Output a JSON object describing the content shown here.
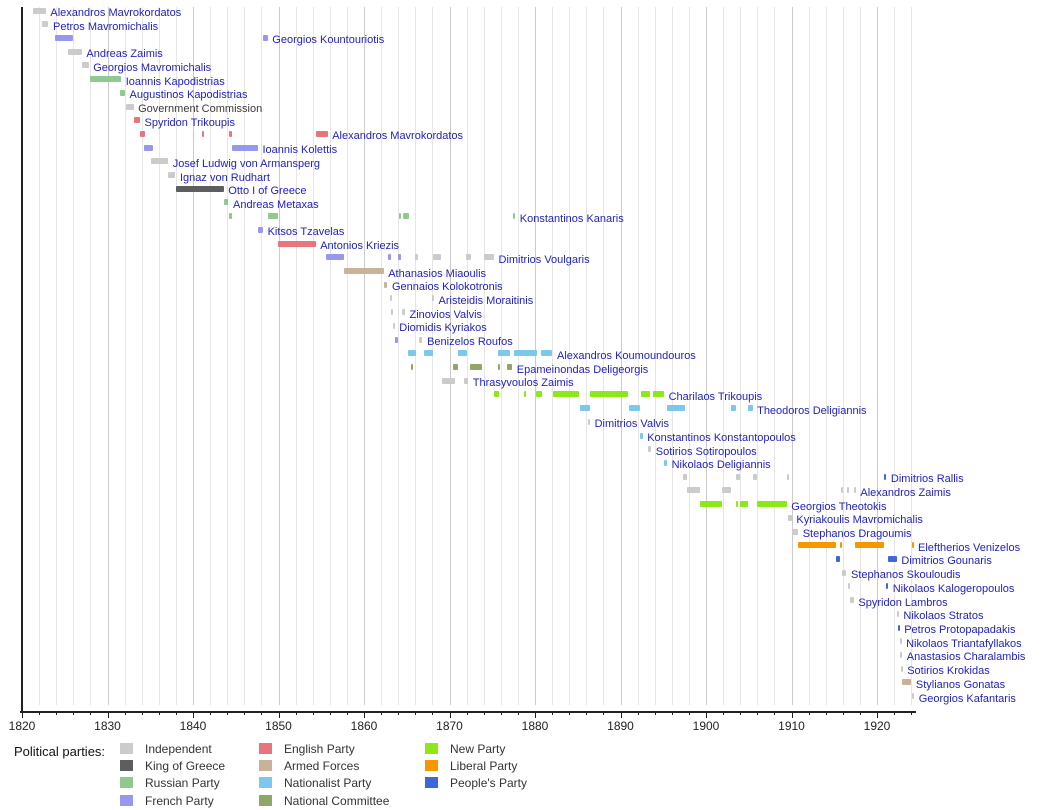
{
  "chart_data": {
    "type": "timeline",
    "description": "Gantt-style timeline of Greek heads of government 1821-1924, colored by political party",
    "x_axis": {
      "range": [
        1820,
        1924.7
      ],
      "major_ticks": [
        1820,
        1830,
        1840,
        1850,
        1860,
        1870,
        1880,
        1890,
        1900,
        1910,
        1920
      ],
      "minor_tick_step_years": 2,
      "gridline_step_years": 2,
      "grid": "on"
    },
    "colors": {
      "link_text": "#2222bb",
      "plain_text": "#3a3a3a",
      "axis": "#222222",
      "grid_minor": "#e6e6e6",
      "grid_major": "#cbcbcb",
      "background": "#ffffff"
    },
    "parties": {
      "ind": {
        "label": "Independent",
        "color": "#cbcbcb"
      },
      "king": {
        "label": "King of Greece",
        "color": "#5e5e5e"
      },
      "rus": {
        "label": "Russian Party",
        "color": "#8fc98f"
      },
      "fr": {
        "label": "French Party",
        "color": "#9797ee"
      },
      "eng": {
        "label": "English Party",
        "color": "#e8747c"
      },
      "arm": {
        "label": "Armed Forces",
        "color": "#c8b299"
      },
      "nat": {
        "label": "Nationalist Party",
        "color": "#7cc8eb"
      },
      "nc": {
        "label": "National Committee",
        "color": "#8fa765"
      },
      "new": {
        "label": "New Party",
        "color": "#8ce816"
      },
      "lib": {
        "label": "Liberal Party",
        "color": "#f59800"
      },
      "peo": {
        "label": "People's Party",
        "color": "#3e68d8"
      }
    },
    "legend": {
      "title": "Political parties:",
      "columns": [
        [
          "ind",
          "king",
          "rus",
          "fr"
        ],
        [
          "eng",
          "arm",
          "nat",
          "nc"
        ],
        [
          "new",
          "lib",
          "peo"
        ]
      ]
    },
    "people": [
      {
        "name": "Alexandros Mavrokordatos",
        "link": true,
        "segments": [
          [
            1821.3,
            1822.8,
            "ind"
          ]
        ]
      },
      {
        "name": "Petros Mavromichalis",
        "link": true,
        "segments": [
          [
            1822.3,
            1823.1,
            "ind"
          ]
        ]
      },
      {
        "name": "Georgios Kountouriotis",
        "link": true,
        "segments": [
          [
            1823.8,
            1826.0,
            "fr"
          ],
          [
            1848.2,
            1848.75,
            "fr"
          ]
        ]
      },
      {
        "name": "Andreas Zaimis",
        "link": true,
        "segments": [
          [
            1825.4,
            1827.0,
            "ind"
          ]
        ]
      },
      {
        "name": "Georgios Mavromichalis",
        "link": true,
        "segments": [
          [
            1827.0,
            1827.8,
            "ind"
          ]
        ]
      },
      {
        "name": "Ioannis Kapodistrias",
        "link": true,
        "segments": [
          [
            1827.9,
            1831.6,
            "rus"
          ]
        ]
      },
      {
        "name": "Augustinos Kapodistrias",
        "link": true,
        "segments": [
          [
            1831.4,
            1832.05,
            "rus"
          ]
        ]
      },
      {
        "name": "Government Commission",
        "link": false,
        "segments": [
          [
            1832.1,
            1833.05,
            "ind"
          ]
        ]
      },
      {
        "name": "Spyridon Trikoupis",
        "link": true,
        "segments": [
          [
            1833.1,
            1833.8,
            "eng"
          ]
        ]
      },
      {
        "name": "Alexandros Mavrokordatos",
        "link": true,
        "segments": [
          [
            1833.8,
            1834.4,
            "eng"
          ],
          [
            1841.1,
            1841.35,
            "eng"
          ],
          [
            1844.2,
            1844.55,
            "eng"
          ],
          [
            1854.4,
            1855.75,
            "eng"
          ]
        ]
      },
      {
        "name": "Ioannis Kolettis",
        "link": true,
        "segments": [
          [
            1834.3,
            1835.3,
            "fr"
          ],
          [
            1844.55,
            1847.6,
            "fr"
          ]
        ]
      },
      {
        "name": "Josef Ludwig von Armansperg",
        "link": true,
        "segments": [
          [
            1835.1,
            1837.1,
            "ind"
          ]
        ]
      },
      {
        "name": "Ignaz von Rudhart",
        "link": true,
        "segments": [
          [
            1837.1,
            1837.95,
            "ind"
          ]
        ]
      },
      {
        "name": "Otto I of Greece",
        "link": true,
        "segments": [
          [
            1837.95,
            1843.6,
            "king"
          ]
        ]
      },
      {
        "name": "Andreas Metaxas",
        "link": true,
        "segments": [
          [
            1843.6,
            1844.15,
            "rus"
          ]
        ]
      },
      {
        "name": "Konstantinos Kanaris",
        "link": true,
        "segments": [
          [
            1844.15,
            1844.55,
            "rus"
          ],
          [
            1848.75,
            1849.9,
            "rus"
          ],
          [
            1864.1,
            1864.3,
            "rus"
          ],
          [
            1864.5,
            1865.25,
            "rus"
          ],
          [
            1877.4,
            1877.7,
            "rus"
          ]
        ]
      },
      {
        "name": "Kitsos Tzavelas",
        "link": true,
        "segments": [
          [
            1847.6,
            1848.2,
            "fr"
          ]
        ]
      },
      {
        "name": "Antonios Kriezis",
        "link": true,
        "segments": [
          [
            1849.9,
            1854.35,
            "eng"
          ]
        ]
      },
      {
        "name": "Dimitrios Voulgaris",
        "link": true,
        "segments": [
          [
            1855.5,
            1857.7,
            "fr"
          ],
          [
            1862.75,
            1863.1,
            "fr"
          ],
          [
            1863.95,
            1864.3,
            "fr"
          ],
          [
            1865.95,
            1866.35,
            "ind"
          ],
          [
            1868.1,
            1869.05,
            "ind"
          ],
          [
            1871.95,
            1872.55,
            "ind"
          ],
          [
            1874.0,
            1875.2,
            "ind"
          ]
        ]
      },
      {
        "name": "Athanasios Miaoulis",
        "link": true,
        "segments": [
          [
            1857.7,
            1862.3,
            "arm"
          ]
        ]
      },
      {
        "name": "Gennaios Kolokotronis",
        "link": true,
        "segments": [
          [
            1862.3,
            1862.75,
            "arm"
          ]
        ]
      },
      {
        "name": "Aristeidis Moraitinis",
        "link": true,
        "segments": [
          [
            1863.05,
            1863.2,
            "ind"
          ],
          [
            1867.95,
            1868.1,
            "ind"
          ]
        ]
      },
      {
        "name": "Zinovios Valvis",
        "link": true,
        "segments": [
          [
            1863.2,
            1863.35,
            "ind"
          ],
          [
            1864.45,
            1864.8,
            "ind"
          ]
        ]
      },
      {
        "name": "Diomidis Kyriakos",
        "link": true,
        "segments": [
          [
            1863.35,
            1863.6,
            "ind"
          ]
        ]
      },
      {
        "name": "Benizelos Roufos",
        "link": true,
        "segments": [
          [
            1863.6,
            1864.0,
            "fr"
          ],
          [
            1866.4,
            1866.85,
            "ind"
          ]
        ]
      },
      {
        "name": "Alexandros Koumoundouros",
        "link": true,
        "segments": [
          [
            1865.15,
            1866.1,
            "nat"
          ],
          [
            1867.0,
            1868.1,
            "nat"
          ],
          [
            1870.95,
            1872.0,
            "nat"
          ],
          [
            1875.7,
            1877.1,
            "nat"
          ],
          [
            1877.55,
            1880.2,
            "nat"
          ],
          [
            1880.75,
            1882.05,
            "nat"
          ]
        ]
      },
      {
        "name": "Epameinondas Deligeorgis",
        "link": true,
        "segments": [
          [
            1865.45,
            1865.75,
            "nc"
          ],
          [
            1870.45,
            1870.95,
            "nc"
          ],
          [
            1872.45,
            1873.85,
            "nc"
          ],
          [
            1875.65,
            1875.8,
            "nc"
          ],
          [
            1876.75,
            1877.35,
            "nc"
          ]
        ]
      },
      {
        "name": "Thrasyvoulos Zaimis",
        "link": true,
        "segments": [
          [
            1869.1,
            1870.6,
            "ind"
          ],
          [
            1871.7,
            1872.2,
            "ind"
          ]
        ]
      },
      {
        "name": "Charilaos Trikoupis",
        "link": true,
        "segments": [
          [
            1875.25,
            1875.85,
            "new"
          ],
          [
            1878.75,
            1878.95,
            "new"
          ],
          [
            1880.15,
            1880.85,
            "new"
          ],
          [
            1882.15,
            1885.2,
            "new"
          ],
          [
            1886.4,
            1890.85,
            "new"
          ],
          [
            1892.4,
            1893.4,
            "new"
          ],
          [
            1893.85,
            1895.1,
            "new"
          ]
        ]
      },
      {
        "name": "Theodoros Deligiannis",
        "link": true,
        "segments": [
          [
            1885.3,
            1886.4,
            "nat"
          ],
          [
            1890.95,
            1892.3,
            "nat"
          ],
          [
            1895.45,
            1897.5,
            "nat"
          ],
          [
            1902.95,
            1903.5,
            "nat"
          ],
          [
            1904.95,
            1905.45,
            "nat"
          ]
        ]
      },
      {
        "name": "Dimitrios Valvis",
        "link": true,
        "segments": [
          [
            1886.2,
            1886.45,
            "ind"
          ]
        ]
      },
      {
        "name": "Konstantinos Konstantopoulos",
        "link": true,
        "segments": [
          [
            1892.3,
            1892.6,
            "nat"
          ]
        ]
      },
      {
        "name": "Sotirios Sotiropoulos",
        "link": true,
        "segments": [
          [
            1893.2,
            1893.6,
            "ind"
          ]
        ]
      },
      {
        "name": "Nikolaos Deligiannis",
        "link": true,
        "segments": [
          [
            1895.1,
            1895.45,
            "nat"
          ]
        ]
      },
      {
        "name": "Dimitrios Rallis",
        "link": true,
        "segments": [
          [
            1897.3,
            1897.75,
            "ind"
          ],
          [
            1903.55,
            1903.95,
            "ind"
          ],
          [
            1905.45,
            1905.95,
            "ind"
          ],
          [
            1909.45,
            1909.6,
            "ind"
          ],
          [
            1920.85,
            1921.1,
            "peo"
          ]
        ]
      },
      {
        "name": "Alexandros Zaimis",
        "link": true,
        "segments": [
          [
            1897.75,
            1899.3,
            "ind"
          ],
          [
            1901.85,
            1902.9,
            "ind"
          ],
          [
            1915.75,
            1915.87,
            "ind"
          ],
          [
            1916.45,
            1916.65,
            "ind"
          ],
          [
            1917.3,
            1917.45,
            "ind"
          ]
        ]
      },
      {
        "name": "Georgios Theotokis",
        "link": true,
        "segments": [
          [
            1899.3,
            1901.85,
            "new"
          ],
          [
            1903.45,
            1903.57,
            "new"
          ],
          [
            1903.95,
            1904.95,
            "new"
          ],
          [
            1905.95,
            1909.45,
            "new"
          ]
        ]
      },
      {
        "name": "Kyriakoulis Mavromichalis",
        "link": true,
        "segments": [
          [
            1909.6,
            1910.05,
            "ind"
          ]
        ]
      },
      {
        "name": "Stephanos Dragoumis",
        "link": true,
        "segments": [
          [
            1910.05,
            1910.78,
            "ind"
          ]
        ]
      },
      {
        "name": "Eleftherios Venizelos",
        "link": true,
        "segments": [
          [
            1910.8,
            1915.18,
            "lib"
          ],
          [
            1915.63,
            1915.78,
            "lib"
          ],
          [
            1917.47,
            1920.85,
            "lib"
          ],
          [
            1924.03,
            1924.17,
            "lib"
          ]
        ]
      },
      {
        "name": "Dimitrios Gounaris",
        "link": true,
        "segments": [
          [
            1915.2,
            1915.62,
            "peo"
          ],
          [
            1921.25,
            1922.33,
            "peo"
          ]
        ]
      },
      {
        "name": "Stephanos Skouloudis",
        "link": true,
        "segments": [
          [
            1915.88,
            1916.43,
            "ind"
          ]
        ]
      },
      {
        "name": "Nikolaos Kalogeropoulos",
        "link": true,
        "segments": [
          [
            1916.66,
            1916.8,
            "ind"
          ],
          [
            1921.08,
            1921.24,
            "peo"
          ]
        ]
      },
      {
        "name": "Spyridon Lambros",
        "link": true,
        "segments": [
          [
            1916.8,
            1917.3,
            "ind"
          ]
        ]
      },
      {
        "name": "Nikolaos Stratos",
        "link": true,
        "segments": [
          [
            1922.33,
            1922.42,
            "ind"
          ]
        ]
      },
      {
        "name": "Petros Protopapadakis",
        "link": true,
        "segments": [
          [
            1922.42,
            1922.63,
            "peo"
          ]
        ]
      },
      {
        "name": "Nikolaos Triantafyllakos",
        "link": true,
        "segments": [
          [
            1922.64,
            1922.71,
            "ind"
          ]
        ]
      },
      {
        "name": "Anastasios Charalambis",
        "link": true,
        "segments": [
          [
            1922.72,
            1922.76,
            "ind"
          ]
        ]
      },
      {
        "name": "Sotirios Krokidas",
        "link": true,
        "segments": [
          [
            1922.77,
            1922.9,
            "ind"
          ]
        ]
      },
      {
        "name": "Stylianos Gonatas",
        "link": true,
        "segments": [
          [
            1922.9,
            1924.02,
            "arm"
          ]
        ]
      },
      {
        "name": "Georgios Kafantaris",
        "link": true,
        "segments": [
          [
            1924.12,
            1924.22,
            "ind"
          ]
        ]
      }
    ]
  }
}
